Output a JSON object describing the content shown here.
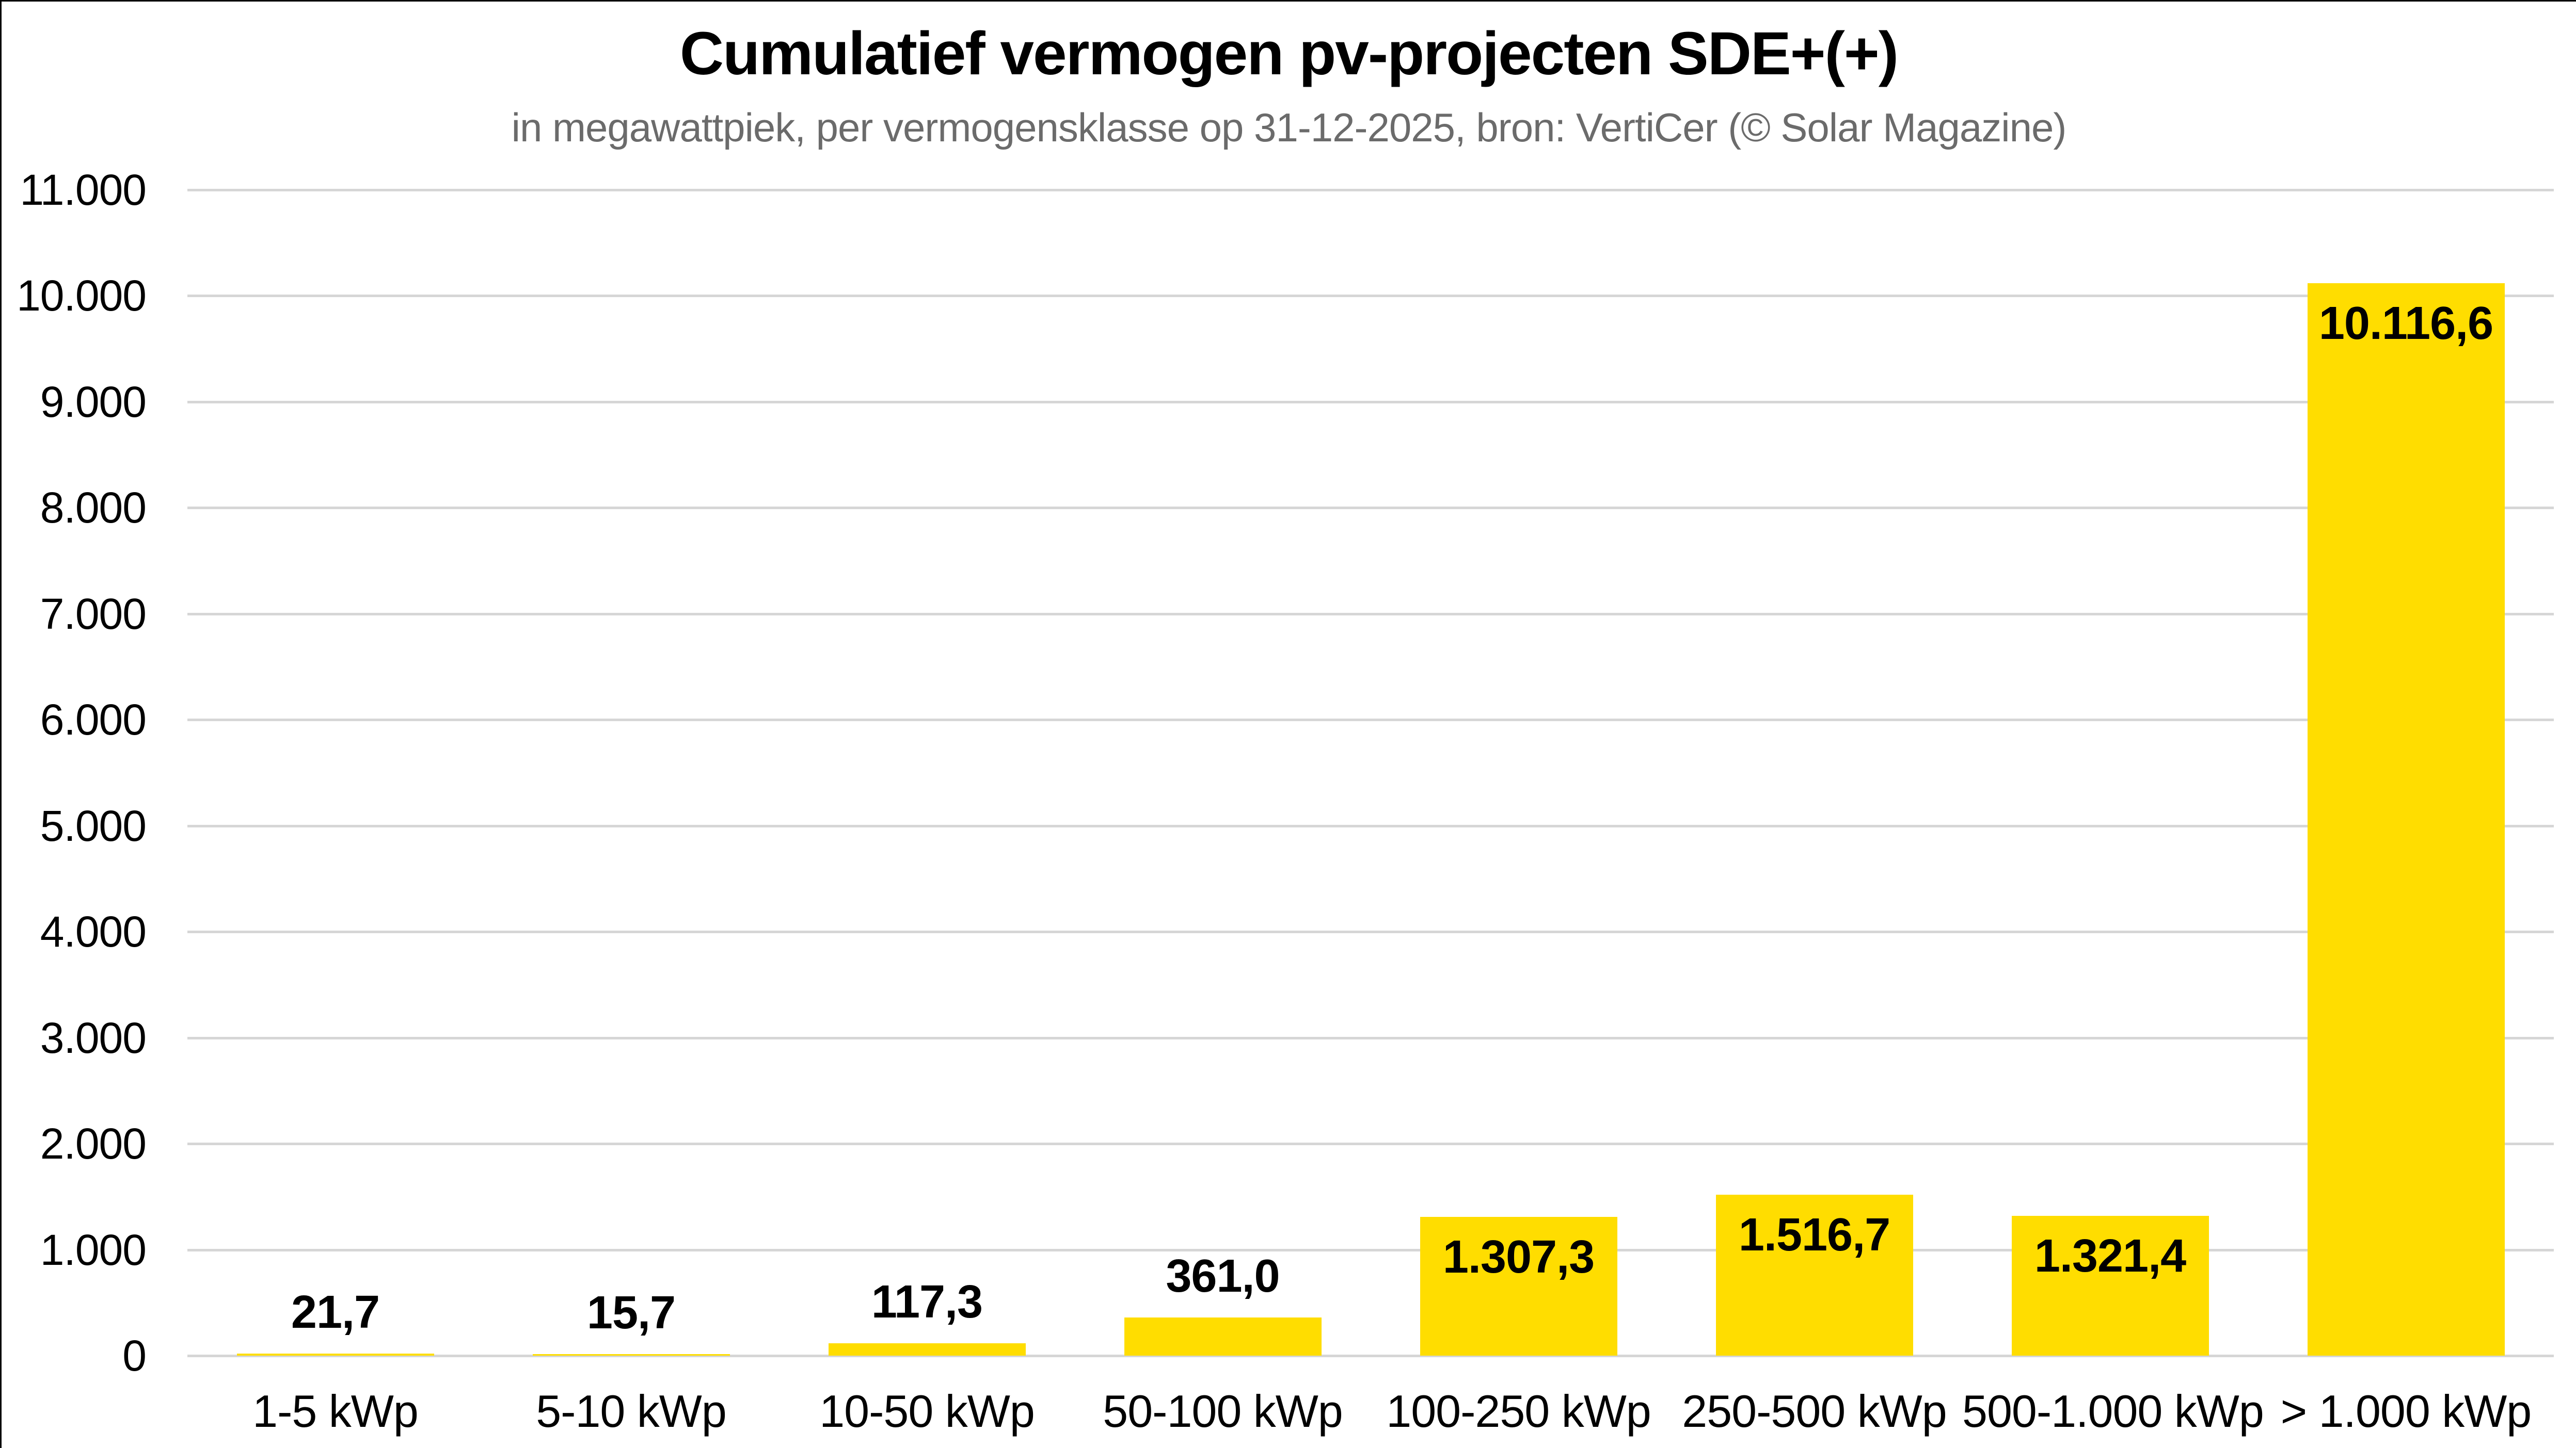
{
  "frame": {
    "border_color": "#000000",
    "background": "#FFFFFF"
  },
  "chart_data": {
    "type": "bar",
    "title": "Cumulatief vermogen pv-projecten SDE+(+)",
    "subtitle": "in megawattpiek, per vermogensklasse op 31-12-2025, bron: VertiCer (© Solar Magazine)",
    "categories": [
      "1-5 kWp",
      "5-10 kWp",
      "10-50 kWp",
      "50-100 kWp",
      "100-250 kWp",
      "250-500 kWp",
      "500-1.000 kWp",
      "> 1.000 kWp"
    ],
    "values": [
      21.7,
      15.7,
      117.3,
      361.0,
      1307.3,
      1516.7,
      1321.4,
      10116.6
    ],
    "value_labels": [
      "21,7",
      "15,7",
      "117,3",
      "361,0",
      "1.307,3",
      "1.516,7",
      "1.321,4",
      "10.116,6"
    ],
    "xlabel": "",
    "ylabel": "",
    "ylim": [
      0,
      11000
    ],
    "y_tick_step": 1000,
    "y_tick_labels_top_to_bottom": [
      "11.000",
      "10.000",
      "9.000",
      "8.000",
      "7.000",
      "6.000",
      "5.000",
      "4.000",
      "3.000",
      "2.000",
      "1.000",
      "0"
    ],
    "grid": true,
    "legend": "none",
    "colors": {
      "bar": "#FFDD00",
      "grid": "#D6D6D6",
      "title": "#000000",
      "subtitle": "#6B6B6B",
      "ticks": "#000000",
      "value_labels": "#000000",
      "background": "#FFFFFF"
    }
  }
}
